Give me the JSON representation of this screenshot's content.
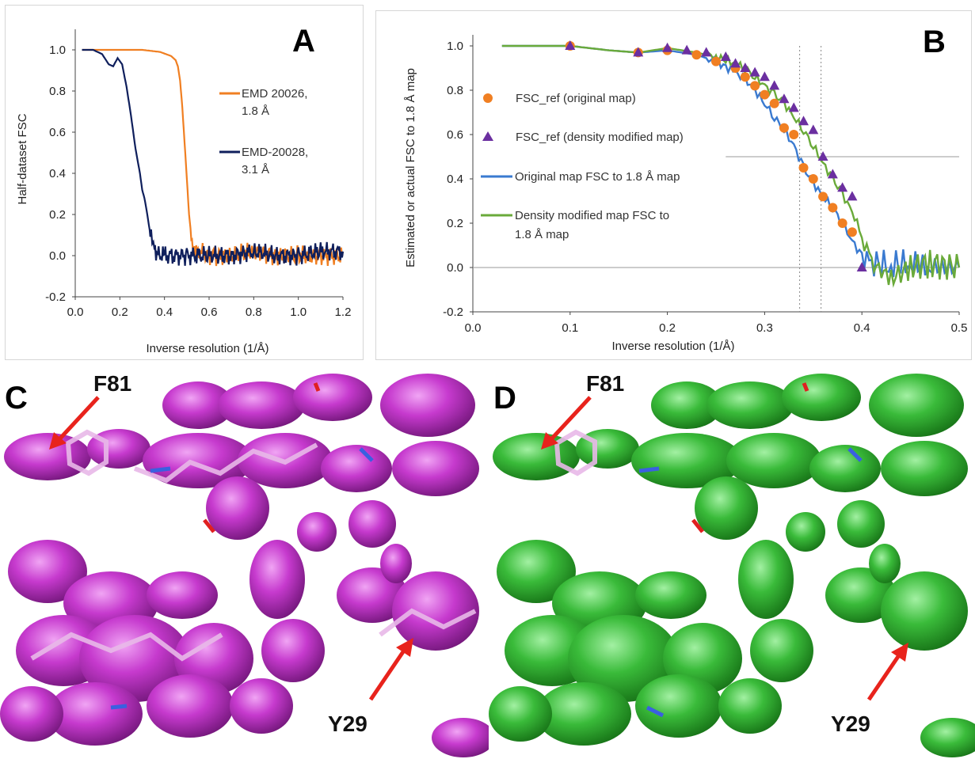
{
  "panelA": {
    "letter": "A",
    "xlabel": "Inverse resolution (1/Å)",
    "ylabel": "Half-dataset FSC",
    "xticks": [
      "0.0",
      "0.2",
      "0.4",
      "0.6",
      "0.8",
      "1.0",
      "1.2"
    ],
    "yticks": [
      "-0.2",
      "0.0",
      "0.2",
      "0.4",
      "0.6",
      "0.8",
      "1.0"
    ],
    "legend": [
      {
        "line1": "EMD 20026,",
        "line2": "1.8 Å"
      },
      {
        "line1": "EMD-20028,",
        "line2": "3.1 Å"
      }
    ]
  },
  "panelB": {
    "letter": "B",
    "xlabel": "Inverse resolution (1/Å)",
    "ylabel": "Estimated or actual FSC to 1.8 Å map",
    "xticks": [
      "0.0",
      "0.1",
      "0.2",
      "0.3",
      "0.4",
      "0.5"
    ],
    "yticks": [
      "-0.2",
      "0.0",
      "0.2",
      "0.4",
      "0.6",
      "0.8",
      "1.0"
    ],
    "legend": {
      "orig_pts": "FSC_ref (original map)",
      "dm_pts": "FSC_ref (density modified map)",
      "orig_line": "Original map FSC to 1.8 Å map",
      "dm_line1": "Density modified map FSC to",
      "dm_line2": "1.8 Å map"
    }
  },
  "panelC": {
    "letter": "C",
    "label_top": "F81",
    "label_bottom": "Y29"
  },
  "panelD": {
    "letter": "D",
    "label_top": "F81",
    "label_bottom": "Y29"
  },
  "colors": {
    "orange": "#f07f22",
    "navy": "#0f1f5c",
    "blue": "#3a7ad0",
    "green": "#6aaa3a",
    "purple": "#6b2fa0",
    "magenta": "#c02ec8",
    "green_density": "#2fb62f",
    "arrow": "#e8231c"
  },
  "chart_data": [
    {
      "type": "line",
      "xlabel": "Inverse resolution (1/Å)",
      "ylabel": "Half-dataset FSC",
      "xlim": [
        0,
        1.2
      ],
      "ylim": [
        -0.2,
        1.1
      ],
      "series": [
        {
          "name": "EMD 20026, 1.8 Å",
          "color": "#f07f22",
          "x": [
            0.03,
            0.1,
            0.2,
            0.3,
            0.38,
            0.43,
            0.45,
            0.46,
            0.47,
            0.48,
            0.49,
            0.5,
            0.51,
            0.52,
            0.53,
            0.55,
            0.6,
            0.7,
            0.8,
            0.9,
            1.0,
            1.1,
            1.2
          ],
          "y": [
            1.0,
            1.0,
            1.0,
            1.0,
            0.99,
            0.97,
            0.95,
            0.92,
            0.85,
            0.72,
            0.55,
            0.38,
            0.2,
            0.1,
            0.05,
            0.02,
            0.0,
            0.0,
            0.02,
            0.0,
            0.0,
            0.0,
            0.0
          ]
        },
        {
          "name": "EMD-20028, 3.1 Å",
          "color": "#0f1f5c",
          "x": [
            0.03,
            0.08,
            0.12,
            0.15,
            0.17,
            0.19,
            0.21,
            0.23,
            0.25,
            0.27,
            0.29,
            0.3,
            0.31,
            0.32,
            0.33,
            0.34,
            0.35,
            0.37,
            0.4,
            0.5,
            0.6,
            0.7,
            0.8,
            0.9,
            1.0,
            1.1,
            1.2
          ],
          "y": [
            1.0,
            1.0,
            0.98,
            0.93,
            0.92,
            0.96,
            0.93,
            0.82,
            0.68,
            0.52,
            0.4,
            0.32,
            0.28,
            0.22,
            0.15,
            0.08,
            0.04,
            0.01,
            0.0,
            0.0,
            0.0,
            0.0,
            0.02,
            0.0,
            0.0,
            0.02,
            0.02
          ]
        }
      ]
    },
    {
      "type": "line",
      "xlabel": "Inverse resolution (1/Å)",
      "ylabel": "Estimated or actual FSC to 1.8 Å map",
      "xlim": [
        0,
        0.5
      ],
      "ylim": [
        -0.2,
        1.05
      ],
      "reference_lines": {
        "y": [
          0.0,
          0.5
        ],
        "x_dotted": [
          0.336,
          0.358
        ]
      },
      "series": [
        {
          "name": "Original map FSC to 1.8 Å map",
          "color": "#3a7ad0",
          "kind": "line",
          "x": [
            0.03,
            0.1,
            0.14,
            0.17,
            0.2,
            0.23,
            0.25,
            0.27,
            0.28,
            0.29,
            0.3,
            0.31,
            0.32,
            0.33,
            0.34,
            0.35,
            0.36,
            0.37,
            0.38,
            0.39,
            0.4,
            0.41,
            0.43,
            0.45,
            0.47,
            0.5
          ],
          "y": [
            1.0,
            1.0,
            0.98,
            0.97,
            0.98,
            0.96,
            0.93,
            0.88,
            0.85,
            0.8,
            0.74,
            0.68,
            0.62,
            0.55,
            0.45,
            0.38,
            0.32,
            0.27,
            0.2,
            0.12,
            0.05,
            0.02,
            0.01,
            0.02,
            0.0,
            0.0
          ]
        },
        {
          "name": "Density modified map FSC to 1.8 Å map",
          "color": "#6aaa3a",
          "kind": "line",
          "x": [
            0.03,
            0.1,
            0.14,
            0.17,
            0.2,
            0.23,
            0.25,
            0.27,
            0.28,
            0.29,
            0.3,
            0.31,
            0.32,
            0.33,
            0.34,
            0.35,
            0.36,
            0.37,
            0.38,
            0.39,
            0.4,
            0.41,
            0.43,
            0.45,
            0.47,
            0.5
          ],
          "y": [
            1.0,
            1.0,
            0.98,
            0.97,
            0.99,
            0.97,
            0.95,
            0.92,
            0.9,
            0.86,
            0.82,
            0.78,
            0.74,
            0.68,
            0.62,
            0.55,
            0.47,
            0.4,
            0.33,
            0.25,
            0.15,
            0.02,
            -0.05,
            0.0,
            0.02,
            0.0
          ]
        },
        {
          "name": "FSC_ref (original map)",
          "color": "#f07f22",
          "kind": "points",
          "x": [
            0.1,
            0.17,
            0.2,
            0.23,
            0.25,
            0.27,
            0.28,
            0.29,
            0.3,
            0.31,
            0.32,
            0.33,
            0.34,
            0.35,
            0.36,
            0.37,
            0.38,
            0.39
          ],
          "y": [
            1.0,
            0.97,
            0.98,
            0.96,
            0.93,
            0.9,
            0.86,
            0.82,
            0.78,
            0.74,
            0.63,
            0.6,
            0.45,
            0.4,
            0.32,
            0.27,
            0.2,
            0.16
          ]
        },
        {
          "name": "FSC_ref (density modified map)",
          "color": "#6b2fa0",
          "kind": "points",
          "x": [
            0.1,
            0.17,
            0.2,
            0.22,
            0.24,
            0.26,
            0.27,
            0.28,
            0.29,
            0.3,
            0.31,
            0.32,
            0.33,
            0.34,
            0.35,
            0.36,
            0.37,
            0.38,
            0.39,
            0.4
          ],
          "y": [
            1.0,
            0.97,
            0.99,
            0.98,
            0.97,
            0.95,
            0.92,
            0.9,
            0.88,
            0.86,
            0.82,
            0.76,
            0.72,
            0.66,
            0.62,
            0.5,
            0.42,
            0.36,
            0.32,
            0.0
          ]
        }
      ]
    }
  ]
}
